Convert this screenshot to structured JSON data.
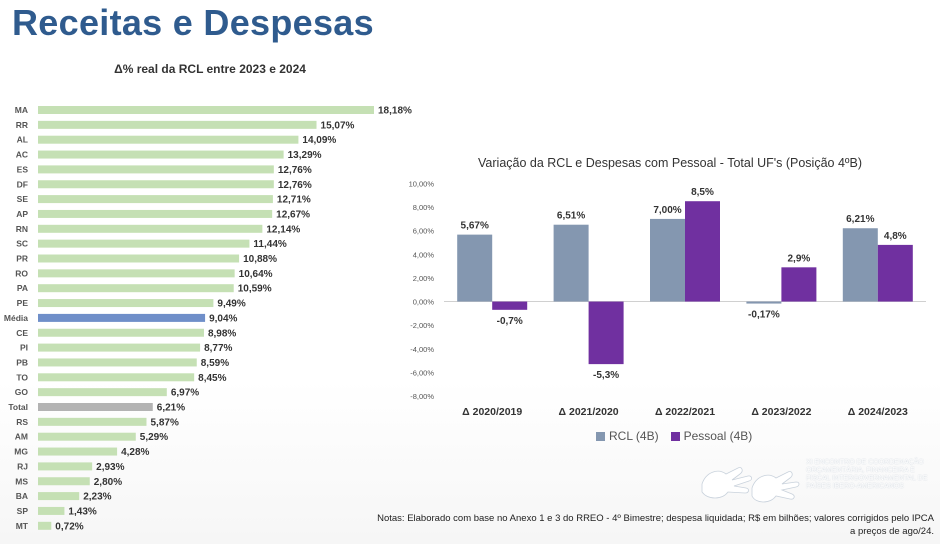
{
  "title": "Receitas e Despesas",
  "colors": {
    "title": "#2f5b8e",
    "bar_default": "#c5e0b4",
    "bar_media": "#6f8fc9",
    "bar_total": "#b3b3b3",
    "rcl": "#8497b0",
    "pessoal": "#7030a0"
  },
  "chart_data": [
    {
      "type": "bar",
      "orientation": "horizontal",
      "title": "Δ% real da RCL entre 2023 e 2024",
      "categories": [
        "MA",
        "RR",
        "AL",
        "AC",
        "ES",
        "DF",
        "SE",
        "AP",
        "RN",
        "SC",
        "PR",
        "RO",
        "PA",
        "PE",
        "Média",
        "CE",
        "PI",
        "PB",
        "TO",
        "GO",
        "Total",
        "RS",
        "AM",
        "MG",
        "RJ",
        "MS",
        "BA",
        "SP",
        "MT"
      ],
      "values": [
        18.18,
        15.07,
        14.09,
        13.29,
        12.76,
        12.76,
        12.71,
        12.67,
        12.14,
        11.44,
        10.88,
        10.64,
        10.59,
        9.49,
        9.04,
        8.98,
        8.77,
        8.59,
        8.45,
        6.97,
        6.21,
        5.87,
        5.29,
        4.28,
        2.93,
        2.8,
        2.23,
        1.43,
        0.72
      ],
      "labels": [
        "18,18%",
        "15,07%",
        "14,09%",
        "13,29%",
        "12,76%",
        "12,76%",
        "12,71%",
        "12,67%",
        "12,14%",
        "11,44%",
        "10,88%",
        "10,64%",
        "10,59%",
        "9,49%",
        "9,04%",
        "8,98%",
        "8,77%",
        "8,59%",
        "8,45%",
        "6,97%",
        "6,21%",
        "5,87%",
        "5,29%",
        "4,28%",
        "2,93%",
        "2,80%",
        "2,23%",
        "1,43%",
        "0,72%"
      ],
      "highlight": {
        "Média": "media",
        "Total": "total"
      }
    },
    {
      "type": "bar",
      "title": "Variação da RCL e Despesas com Pessoal - Total UF's (Posição 4ºB)",
      "categories": [
        "Δ 2020/2019",
        "Δ 2021/2020",
        "Δ 2022/2021",
        "Δ 2023/2022",
        "Δ 2024/2023"
      ],
      "series": [
        {
          "name": "RCL (4B)",
          "values": [
            5.67,
            6.51,
            7.0,
            -0.17,
            6.21
          ],
          "labels": [
            "5,67%",
            "6,51%",
            "7,00%",
            "-0,17%",
            "6,21%"
          ]
        },
        {
          "name": "Pessoal (4B)",
          "values": [
            -0.7,
            -5.3,
            8.5,
            2.9,
            4.8
          ],
          "labels": [
            "-0,7%",
            "-5,3%",
            "8,5%",
            "2,9%",
            "4,8%"
          ]
        }
      ],
      "ylim": [
        -8,
        10
      ],
      "yticks": [
        "10,00%",
        "8,00%",
        "6,00%",
        "4,00%",
        "2,00%",
        "0,00%",
        "-2,00%",
        "-4,00%",
        "-6,00%",
        "-8,00%"
      ],
      "legend": "bottom"
    }
  ],
  "notes_line1": "Notas: Elaborado com base no Anexo 1 e 3 do RREO - 4º Bimestre; despesa liquidada; R$ em bilhões; valores corrigidos pelo IPCA",
  "notes_line2": "a preços de ago/24.",
  "logo_text": "XI Encontro de Coordenação Orçamentária, Financeira e Fiscal Intergovernamental de Países Ibero-Americanos"
}
